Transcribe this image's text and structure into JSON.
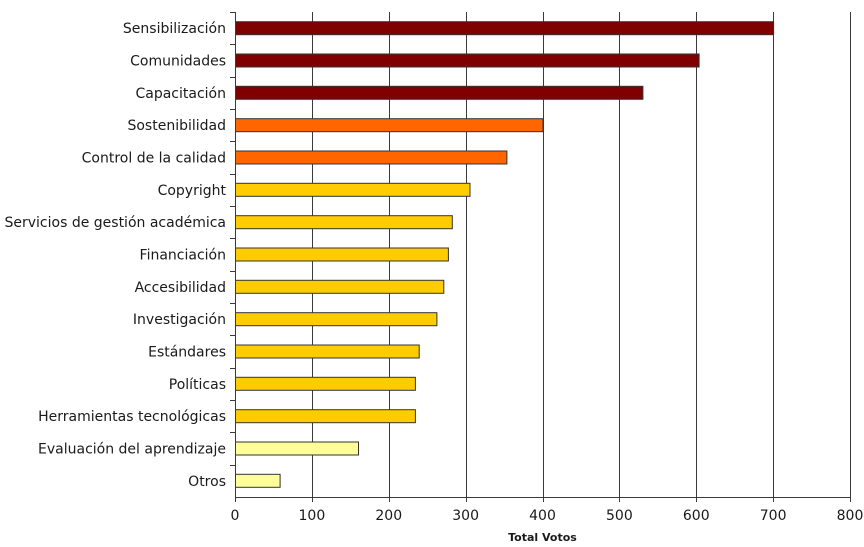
{
  "chart_data": {
    "type": "bar",
    "orientation": "horizontal",
    "categories": [
      "Sensibilización",
      "Comunidades",
      "Capacitación",
      "Sostenibilidad",
      "Control de la calidad",
      "Copyright",
      "Servicios de gestión académica",
      "Financiación",
      "Accesibilidad",
      "Investigación",
      "Estándares",
      "Políticas",
      "Herramientas tecnológicas",
      "Evaluación del aprendizaje",
      "Otros"
    ],
    "values": [
      700,
      603,
      530,
      400,
      353,
      305,
      282,
      277,
      271,
      262,
      239,
      234,
      234,
      160,
      58
    ],
    "colors": [
      "#800000",
      "#800000",
      "#800000",
      "#ff6600",
      "#ff6600",
      "#ffcc00",
      "#ffcc00",
      "#ffcc00",
      "#ffcc00",
      "#ffcc00",
      "#ffcc00",
      "#ffcc00",
      "#ffcc00",
      "#ffff99",
      "#ffff99"
    ],
    "xlabel": "Total Votos",
    "ylabel": "",
    "xlim": [
      0,
      800
    ],
    "xticks": [
      0,
      100,
      200,
      300,
      400,
      500,
      600,
      700,
      800
    ],
    "grid": "vertical",
    "legend": "none"
  }
}
